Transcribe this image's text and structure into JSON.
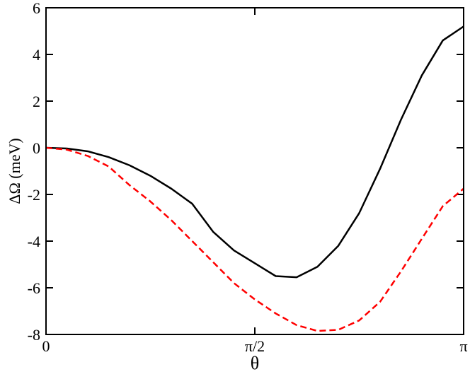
{
  "chart_data": {
    "type": "line",
    "x_label": "θ",
    "y_label": "ΔΩ (meV)",
    "x": [
      0,
      0.157,
      0.314,
      0.471,
      0.628,
      0.785,
      0.942,
      1.1,
      1.257,
      1.414,
      1.571,
      1.728,
      1.885,
      2.042,
      2.199,
      2.356,
      2.513,
      2.67,
      2.827,
      2.985,
      3.1416
    ],
    "series": [
      {
        "color": "#000000",
        "dash": false,
        "values": [
          0,
          -0.03,
          -0.15,
          -0.4,
          -0.75,
          -1.2,
          -1.75,
          -2.4,
          -3.6,
          -4.4,
          -4.95,
          -5.5,
          -5.55,
          -5.1,
          -4.2,
          -2.8,
          -0.9,
          1.2,
          3.1,
          4.6,
          5.2
        ]
      },
      {
        "color": "#ff0000",
        "dash": true,
        "values": [
          0,
          -0.08,
          -0.35,
          -0.8,
          -1.6,
          -2.3,
          -3.1,
          -4.0,
          -4.9,
          -5.8,
          -6.5,
          -7.1,
          -7.6,
          -7.85,
          -7.8,
          -7.4,
          -6.6,
          -5.3,
          -3.9,
          -2.5,
          -1.75
        ]
      }
    ],
    "xlim": [
      0,
      3.1416
    ],
    "xticks": [
      {
        "value": 0,
        "label": "0"
      },
      {
        "value": 1.5708,
        "label": "π/2"
      },
      {
        "value": 3.1416,
        "label": "π"
      }
    ],
    "ylim": [
      -8,
      6
    ],
    "yticks": [
      -8,
      -6,
      -4,
      -2,
      0,
      2,
      4,
      6
    ]
  }
}
